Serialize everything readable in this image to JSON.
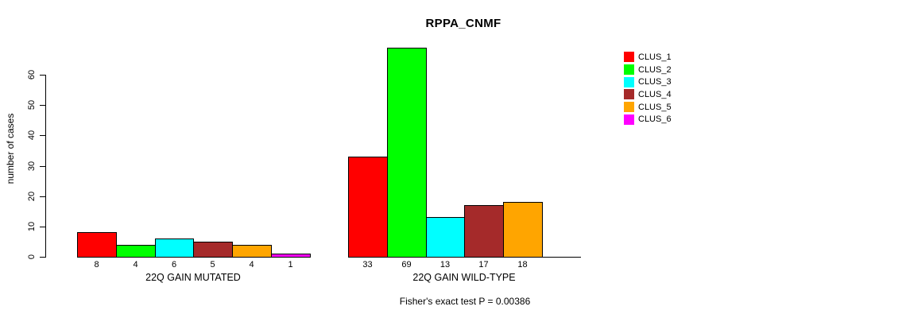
{
  "title": "RPPA_CNMF",
  "chart_data": {
    "type": "bar",
    "title": "RPPA_CNMF",
    "ylabel": "number of cases",
    "ylim": [
      0,
      69
    ],
    "yticks": [
      0,
      10,
      20,
      30,
      40,
      50,
      60
    ],
    "grid": false,
    "legend_position": "right",
    "legend": [
      {
        "label": "CLUS_1",
        "color": "#FF0000"
      },
      {
        "label": "CLUS_2",
        "color": "#00FF00"
      },
      {
        "label": "CLUS_3",
        "color": "#00FFFF"
      },
      {
        "label": "CLUS_4",
        "color": "#A52A2A"
      },
      {
        "label": "CLUS_5",
        "color": "#FFA500"
      },
      {
        "label": "CLUS_6",
        "color": "#FF00FF"
      }
    ],
    "groups": [
      {
        "label": "22Q GAIN MUTATED",
        "values": [
          8,
          4,
          6,
          5,
          4,
          1
        ]
      },
      {
        "label": "22Q GAIN WILD-TYPE",
        "values": [
          33,
          69,
          13,
          17,
          18,
          0
        ]
      }
    ],
    "annotation": "Fisher's exact test P = 0.00386"
  }
}
